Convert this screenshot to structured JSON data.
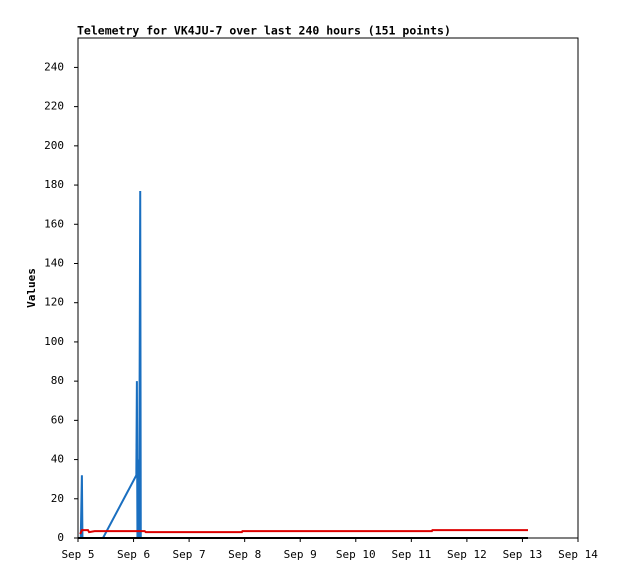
{
  "chart_data": {
    "type": "line",
    "title": "Telemetry for VK4JU-7 over last 240 hours (151 points)",
    "y_label": "Values",
    "xlim": [
      0,
      9
    ],
    "xticks": [
      {
        "value": 0,
        "label": "Sep 5"
      },
      {
        "value": 1,
        "label": "Sep 6"
      },
      {
        "value": 2,
        "label": "Sep 7"
      },
      {
        "value": 3,
        "label": "Sep 8"
      },
      {
        "value": 4,
        "label": "Sep 9"
      },
      {
        "value": 5,
        "label": "Sep 10"
      },
      {
        "value": 6,
        "label": "Sep 11"
      },
      {
        "value": 7,
        "label": "Sep 12"
      },
      {
        "value": 8,
        "label": "Sep 13"
      },
      {
        "value": 9,
        "label": "Sep 14"
      }
    ],
    "ylim": [
      0,
      255
    ],
    "yticks": [
      0,
      20,
      40,
      60,
      80,
      100,
      120,
      140,
      160,
      180,
      200,
      220,
      240
    ],
    "series": [
      {
        "color": "#1a6fc0",
        "x": [
          0.05,
          0.07,
          0.08,
          0.45,
          1.05,
          1.06,
          1.07,
          1.09,
          1.1,
          1.12,
          1.13,
          8.1
        ],
        "values": [
          0,
          32,
          0,
          0,
          32,
          80,
          0,
          40,
          0,
          177,
          0,
          0
        ]
      },
      {
        "color": "#dd0000",
        "x": [
          0.04,
          0.07,
          0.18,
          0.2,
          0.3,
          1.2,
          1.22,
          2.95,
          2.96,
          6.37,
          6.38,
          8.1
        ],
        "values": [
          2,
          4,
          4,
          3,
          3.5,
          3.5,
          3,
          3,
          3.5,
          3.5,
          4,
          4
        ]
      },
      {
        "color": "#000000",
        "x": [
          0,
          8.1
        ],
        "values": [
          0,
          0
        ]
      }
    ]
  }
}
